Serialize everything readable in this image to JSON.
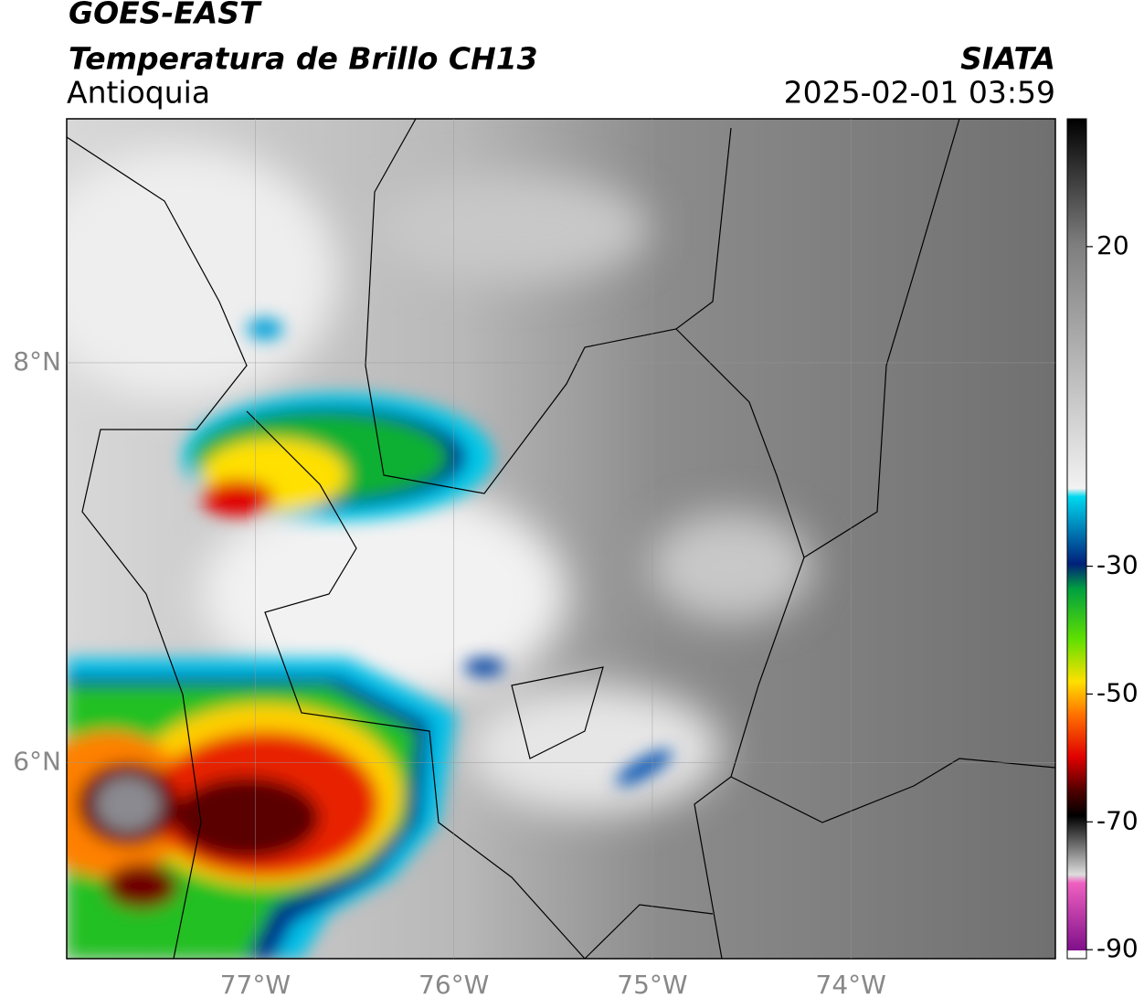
{
  "header": {
    "title": "GOES-EAST",
    "subtitle": "Temperatura de Brillo CH13",
    "region": "Antioquia",
    "source": "SIATA",
    "datetime": "2025-02-01 03:59"
  },
  "map": {
    "xlim": [
      -77.95,
      -72.97
    ],
    "ylim": [
      5.02,
      9.22
    ],
    "xticks": [
      {
        "value": -77,
        "label": "77°W"
      },
      {
        "value": -76,
        "label": "76°W"
      },
      {
        "value": -75,
        "label": "75°W"
      },
      {
        "value": -74,
        "label": "74°W"
      }
    ],
    "yticks": [
      {
        "value": 6,
        "label": "6°N"
      },
      {
        "value": 8,
        "label": "8°N"
      }
    ],
    "grid": true
  },
  "colorbar": {
    "lim": [
      -91.4,
      40
    ],
    "ticks": [
      20,
      -30,
      -50,
      -70,
      -90
    ]
  }
}
